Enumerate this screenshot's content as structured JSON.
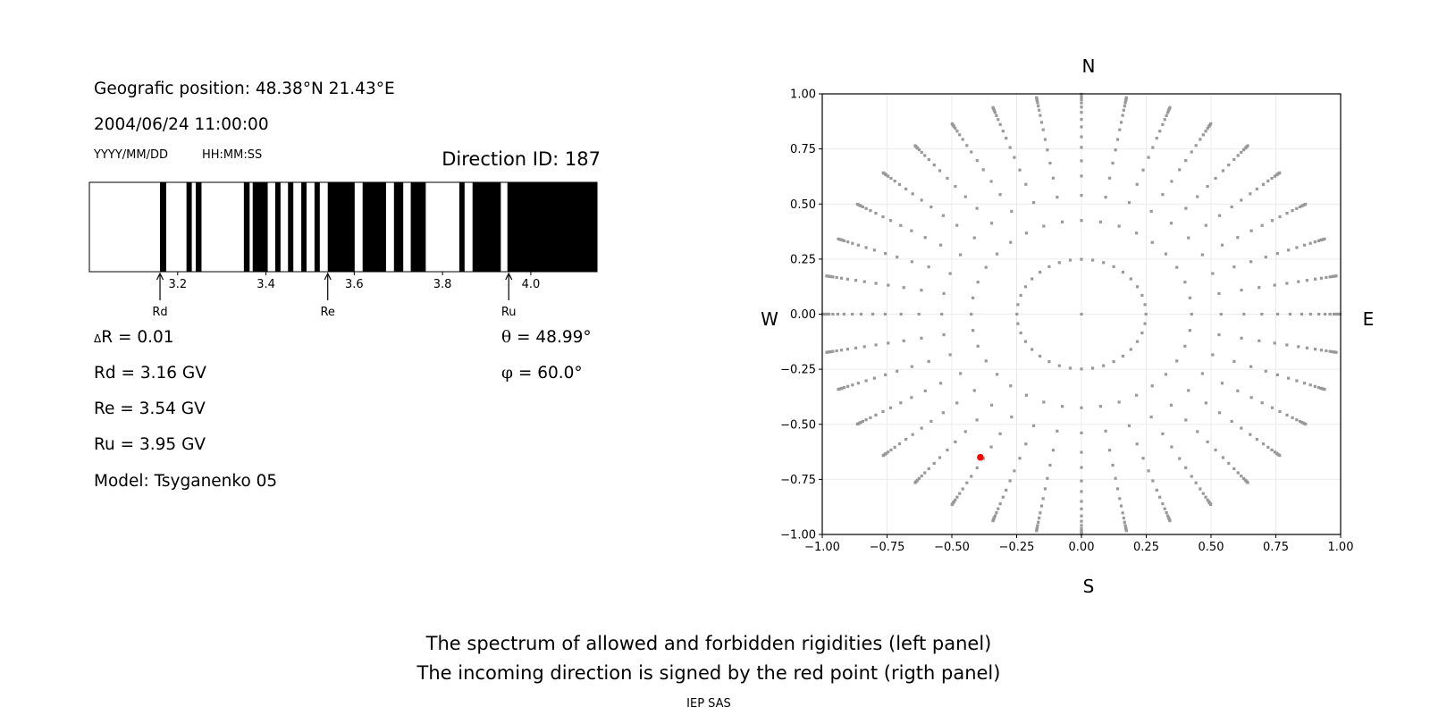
{
  "left_panel": {
    "geo_position": "Geografic position: 48.38°N 21.43°E",
    "datetime": "2004/06/24 11:00:00",
    "date_format": "YYYY/MM/DD",
    "time_format": "HH:MM:SS",
    "direction_id": "Direction ID: 187",
    "delta_r_symbol": "Δ",
    "delta_r": "R = 0.01",
    "rd": "Rd = 3.16 GV",
    "re": "Re = 3.54 GV",
    "ru": "Ru = 3.95 GV",
    "model": "Model: Tsyganenko 05",
    "theta_symbol": "θ",
    "theta": " = 48.99°",
    "phi_symbol": "φ",
    "phi": " = 60.0°"
  },
  "right_panel": {
    "north": "N",
    "south": "S",
    "west": "W",
    "east": "E"
  },
  "caption": {
    "line1": "The spectrum of allowed and forbidden rigidities (left panel)",
    "line2": "The incoming direction is signed by the red point (rigth panel)",
    "credit": "IEP SAS"
  },
  "chart_data": [
    {
      "type": "bar",
      "xlim": [
        3.0,
        4.15
      ],
      "xticks": [
        3.2,
        3.4,
        3.6,
        3.8,
        4.0
      ],
      "xtick_labels": [
        "3.2",
        "3.4",
        "3.6",
        "3.8",
        "4.0"
      ],
      "forbidden_color": "#000000",
      "allowed_color": "#ffffff",
      "forbidden_intervals": [
        [
          3.16,
          3.174
        ],
        [
          3.22,
          3.232
        ],
        [
          3.241,
          3.254
        ],
        [
          3.35,
          3.363
        ],
        [
          3.37,
          3.404
        ],
        [
          3.421,
          3.433
        ],
        [
          3.45,
          3.462
        ],
        [
          3.48,
          3.492
        ],
        [
          3.51,
          3.522
        ],
        [
          3.54,
          3.601
        ],
        [
          3.619,
          3.672
        ],
        [
          3.69,
          3.711
        ],
        [
          3.728,
          3.762
        ],
        [
          3.838,
          3.85
        ],
        [
          3.868,
          3.932
        ],
        [
          3.947,
          4.15
        ]
      ],
      "markers": [
        {
          "label": "Rd",
          "value": 3.16
        },
        {
          "label": "Re",
          "value": 3.54
        },
        {
          "label": "Ru",
          "value": 3.95
        }
      ]
    },
    {
      "type": "scatter",
      "xlim": [
        -1.0,
        1.0
      ],
      "ylim": [
        -1.0,
        1.0
      ],
      "xticks": [
        -1.0,
        -0.75,
        -0.5,
        -0.25,
        0.0,
        0.25,
        0.5,
        0.75,
        1.0
      ],
      "xtick_labels": [
        "−1.00",
        "−0.75",
        "−0.50",
        "−0.25",
        "0.00",
        "0.25",
        "0.50",
        "0.75",
        "1.00"
      ],
      "yticks": [
        -1.0,
        -0.75,
        -0.5,
        -0.25,
        0.0,
        0.25,
        0.5,
        0.75,
        1.0
      ],
      "ytick_labels": [
        "−1.00",
        "−0.75",
        "−0.50",
        "−0.25",
        "0.00",
        "0.25",
        "0.50",
        "0.75",
        "1.00"
      ],
      "grid": true,
      "point_color": "#999999",
      "highlight_color": "#ff0000",
      "ring_radii": [
        0.249,
        0.425,
        0.539,
        0.627,
        0.696,
        0.757,
        0.805,
        0.85,
        0.884,
        0.916,
        0.94,
        0.959,
        0.974,
        0.983,
        0.988,
        0.994,
        0.998
      ],
      "azimuth_step_deg": 10,
      "center_point": [
        0.0,
        0.0
      ],
      "highlight_point": [
        -0.39,
        -0.65
      ]
    }
  ]
}
